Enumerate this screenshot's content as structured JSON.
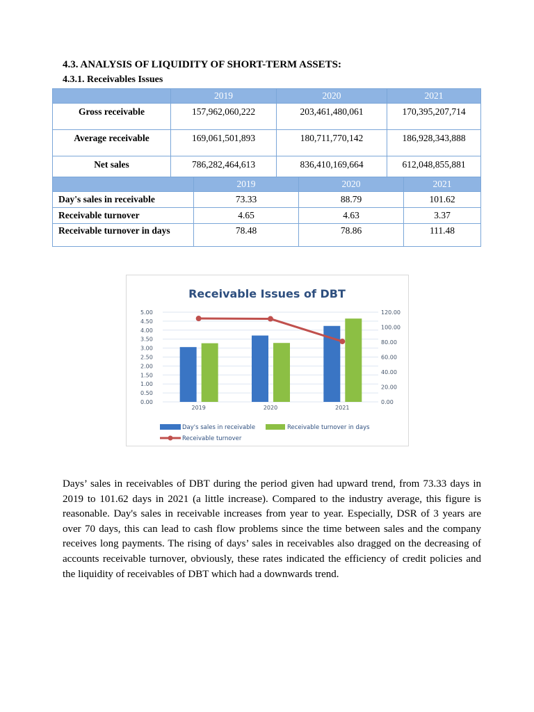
{
  "heading": "4.3. ANALYSIS OF LIQUIDITY OF SHORT-TERM ASSETS:",
  "subheading": "4.3.1. Receivables Issues",
  "table1": {
    "headers": [
      "",
      "2019",
      "2020",
      "2021"
    ],
    "rows": [
      [
        "Gross receivable",
        "157,962,060,222",
        "203,461,480,061",
        "170,395,207,714"
      ],
      [
        "Average receivable",
        "169,061,501,893",
        "180,711,770,142",
        "186,928,343,888"
      ],
      [
        "Net sales",
        "786,282,464,613",
        "836,410,169,664",
        "612,048,855,881"
      ]
    ]
  },
  "table2": {
    "headers": [
      "",
      "2019",
      "2020",
      "2021"
    ],
    "rows": [
      [
        "Day's sales in receivable",
        "73.33",
        "88.79",
        "101.62"
      ],
      [
        "Receivable turnover",
        "4.65",
        "4.63",
        "3.37"
      ],
      [
        "Receivable turnover in days",
        "78.48",
        "78.86",
        "111.48"
      ]
    ]
  },
  "chart_data": {
    "type": "bar+line",
    "title": "Receivable Issues of DBT",
    "categories": [
      "2019",
      "2020",
      "2021"
    ],
    "left_axis": {
      "range": [
        0,
        5
      ],
      "ticks": [
        "0.00",
        "0.50",
        "1.00",
        "1.50",
        "2.00",
        "2.50",
        "3.00",
        "3.50",
        "4.00",
        "4.50",
        "5.00"
      ]
    },
    "right_axis": {
      "range": [
        0,
        120
      ],
      "ticks": [
        "0.00",
        "20.00",
        "40.00",
        "60.00",
        "80.00",
        "100.00",
        "120.00"
      ]
    },
    "series": [
      {
        "name": "Day's sales in receivable",
        "type": "bar",
        "axis": "right",
        "values": [
          73.33,
          88.79,
          101.62
        ],
        "color": "#3a75c4"
      },
      {
        "name": "Receivable turnover in days",
        "type": "bar",
        "axis": "right",
        "values": [
          78.48,
          78.86,
          111.48
        ],
        "color": "#8cbf44"
      },
      {
        "name": "Receivable turnover",
        "type": "line",
        "axis": "left",
        "values": [
          4.65,
          4.63,
          3.37
        ],
        "color": "#c0504d"
      }
    ],
    "grid": true,
    "legend": "bottom"
  },
  "paragraph": "Days’ sales in receivables of DBT during the period given had upward trend, from 73.33 days in 2019 to 101.62 days in 2021 (a little increase). Compared to the industry average, this figure is reasonable. Day's sales in receivable increases from year to year. Especially, DSR of 3 years are over 70 days, this can lead to cash flow problems since the time between sales and the company receives long payments. The rising of days’ sales in receivables also dragged on the decreasing of accounts receivable turnover, obviously, these rates indicated the efficiency of credit policies and the liquidity of receivables of DBT which had a downwards trend."
}
